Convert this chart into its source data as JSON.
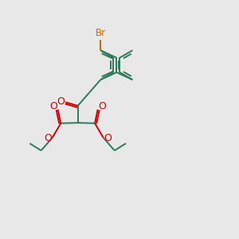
{
  "bg_color": "#e8e8e8",
  "bond_color": "#2d7a5a",
  "oxygen_color": "#cc0000",
  "bromine_color": "#cc6600",
  "line_width": 1.4,
  "fig_size": [
    3.0,
    3.0
  ],
  "dpi": 100,
  "xlim": [
    0,
    10
  ],
  "ylim": [
    0,
    10
  ]
}
